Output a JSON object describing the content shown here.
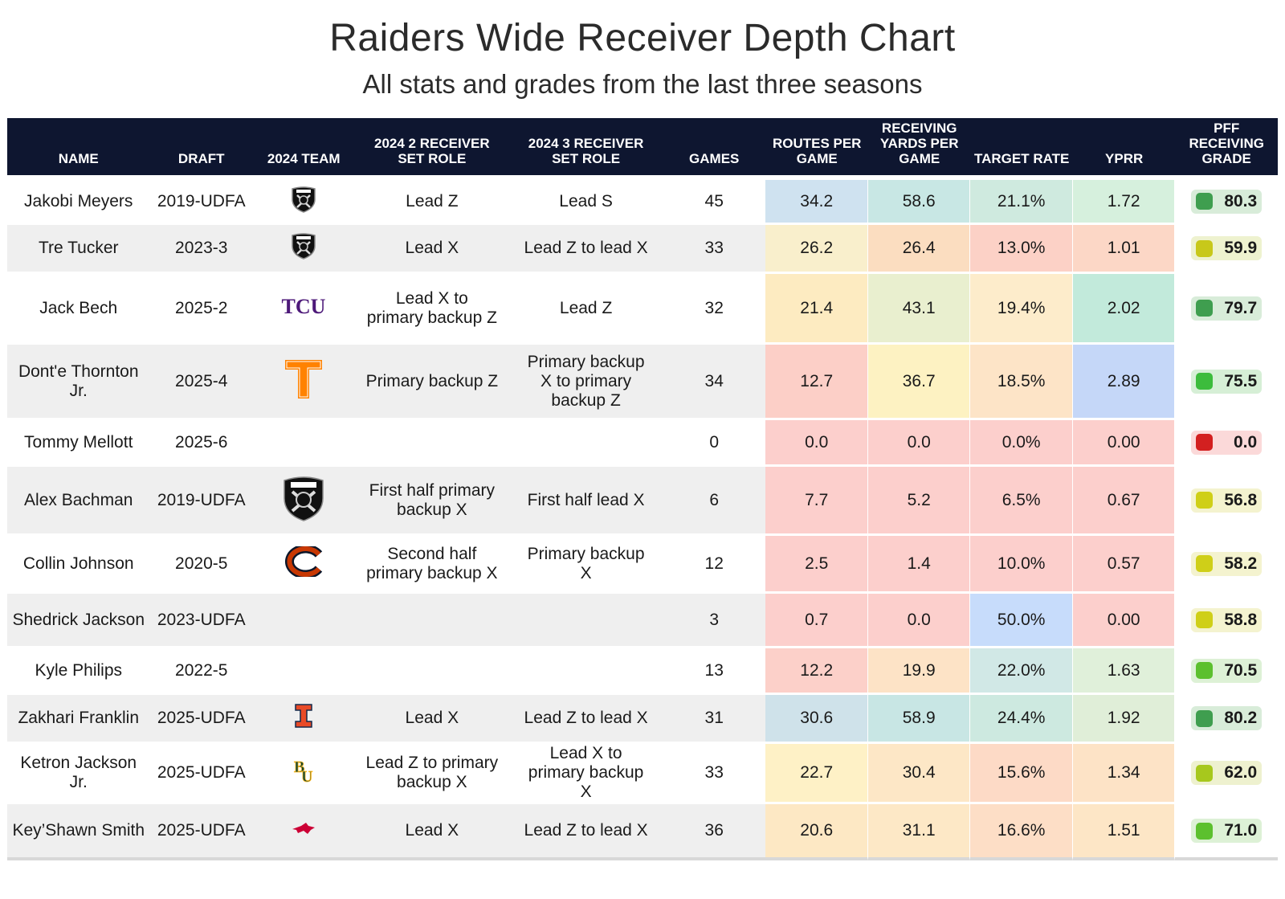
{
  "title": "Raiders Wide Receiver Depth Chart",
  "subtitle": "All stats and grades from the last three seasons",
  "chart_data": {
    "type": "table",
    "columns": [
      "NAME",
      "DRAFT",
      "2024 TEAM",
      "2024 2 RECEIVER SET ROLE",
      "2024 3 RECEIVER SET ROLE",
      "GAMES",
      "ROUTES PER GAME",
      "RECEIVING YARDS PER GAME",
      "TARGET RATE",
      "YPRR",
      "PFF RECEIVING GRADE"
    ],
    "rows": [
      {
        "name": "Jakobi Meyers",
        "draft": "2019-UDFA",
        "team": "raiders-logo",
        "role2": "Lead Z",
        "role3": "Lead S",
        "games": "45",
        "routes": "34.2",
        "yards": "58.6",
        "target": "21.1%",
        "yprr": "1.72",
        "grade": "80.3"
      },
      {
        "name": "Tre Tucker",
        "draft": "2023-3",
        "team": "raiders-logo",
        "role2": "Lead X",
        "role3": "Lead Z to lead X",
        "games": "33",
        "routes": "26.2",
        "yards": "26.4",
        "target": "13.0%",
        "yprr": "1.01",
        "grade": "59.9"
      },
      {
        "name": "Jack Bech",
        "draft": "2025-2",
        "team": "tcu-logo",
        "role2": "Lead X to primary backup Z",
        "role3": "Lead Z",
        "games": "32",
        "routes": "21.4",
        "yards": "43.1",
        "target": "19.4%",
        "yprr": "2.02",
        "grade": "79.7"
      },
      {
        "name": "Dont'e Thornton Jr.",
        "draft": "2025-4",
        "team": "tennessee-logo",
        "role2": "Primary backup Z",
        "role3": "Primary backup X to primary backup Z",
        "games": "34",
        "routes": "12.7",
        "yards": "36.7",
        "target": "18.5%",
        "yprr": "2.89",
        "grade": "75.5"
      },
      {
        "name": "Tommy Mellott",
        "draft": "2025-6",
        "team": "",
        "role2": "",
        "role3": "",
        "games": "0",
        "routes": "0.0",
        "yards": "0.0",
        "target": "0.0%",
        "yprr": "0.00",
        "grade": "0.0"
      },
      {
        "name": "Alex Bachman",
        "draft": "2019-UDFA",
        "team": "raiders-logo",
        "role2": "First half primary backup X",
        "role3": "First half lead X",
        "games": "6",
        "routes": "7.7",
        "yards": "5.2",
        "target": "6.5%",
        "yprr": "0.67",
        "grade": "56.8"
      },
      {
        "name": "Collin Johnson",
        "draft": "2020-5",
        "team": "bears-logo",
        "role2": "Second half primary backup X",
        "role3": "Primary backup X",
        "games": "12",
        "routes": "2.5",
        "yards": "1.4",
        "target": "10.0%",
        "yprr": "0.57",
        "grade": "58.2"
      },
      {
        "name": "Shedrick Jackson",
        "draft": "2023-UDFA",
        "team": "",
        "role2": "",
        "role3": "",
        "games": "3",
        "routes": "0.7",
        "yards": "0.0",
        "target": "50.0%",
        "yprr": "0.00",
        "grade": "58.8"
      },
      {
        "name": "Kyle Philips",
        "draft": "2022-5",
        "team": "",
        "role2": "",
        "role3": "",
        "games": "13",
        "routes": "12.2",
        "yards": "19.9",
        "target": "22.0%",
        "yprr": "1.63",
        "grade": "70.5"
      },
      {
        "name": "Zakhari Franklin",
        "draft": "2025-UDFA",
        "team": "illinois-logo",
        "role2": "Lead X",
        "role3": "Lead Z to lead X",
        "games": "31",
        "routes": "30.6",
        "yards": "58.9",
        "target": "24.4%",
        "yprr": "1.92",
        "grade": "80.2"
      },
      {
        "name": "Ketron Jackson Jr.",
        "draft": "2025-UDFA",
        "team": "baylor-logo",
        "role2": "Lead Z to primary backup X",
        "role3": "Lead X to primary backup X",
        "games": "33",
        "routes": "22.7",
        "yards": "30.4",
        "target": "15.6%",
        "yprr": "1.34",
        "grade": "62.0"
      },
      {
        "name": "Key’Shawn Smith",
        "draft": "2025-UDFA",
        "team": "smu-logo",
        "role2": "Lead X",
        "role3": "Lead Z to lead X",
        "games": "36",
        "routes": "20.6",
        "yards": "31.1",
        "target": "16.6%",
        "yprr": "1.51",
        "grade": "71.0"
      }
    ],
    "cell_colors": [
      [
        "#cfe2f0",
        "#c8e7e4",
        "#cfeadf",
        "#d6f0dd"
      ],
      [
        "#f9efcc",
        "#fbddc0",
        "#fcd1c6",
        "#fcd7c6"
      ],
      [
        "#fdebc1",
        "#e9efcf",
        "#fdeccb",
        "#c2eadb"
      ],
      [
        "#fccfc7",
        "#fdf2c2",
        "#fde4c7",
        "#c5d7f8"
      ],
      [
        "#fccfcc",
        "#fccfcc",
        "#fccfcc",
        "#fccfcc"
      ],
      [
        "#fccfcc",
        "#fccfcc",
        "#fccfcc",
        "#fccfcc"
      ],
      [
        "#fccfcc",
        "#fccfcc",
        "#fccfcc",
        "#fccfcc"
      ],
      [
        "#fccfcc",
        "#fccfcc",
        "#c7dcfb",
        "#fccfcc"
      ],
      [
        "#fcd0c9",
        "#fde3c6",
        "#d1e8e6",
        "#e0f0da"
      ],
      [
        "#cfe2ea",
        "#c8e6e4",
        "#cde9e0",
        "#e0eed8"
      ],
      [
        "#fef1c6",
        "#fde7c6",
        "#fddac6",
        "#fde3c6"
      ],
      [
        "#fde8c4",
        "#fde8c6",
        "#fddec6",
        "#fde6c6"
      ]
    ],
    "grade_colors": [
      {
        "bg": "#d8ecd9",
        "dot": "#3f9e4f"
      },
      {
        "bg": "#eef2cf",
        "dot": "#c8c81a"
      },
      {
        "bg": "#d8ecd9",
        "dot": "#3f9e4f"
      },
      {
        "bg": "#d6efd6",
        "dot": "#3cbc3c"
      },
      {
        "bg": "#fbd9d9",
        "dot": "#d32020"
      },
      {
        "bg": "#f4f3cf",
        "dot": "#cfcf18"
      },
      {
        "bg": "#f4f3cf",
        "dot": "#cfcf18"
      },
      {
        "bg": "#f4f3cf",
        "dot": "#cfcf18"
      },
      {
        "bg": "#ddf1d6",
        "dot": "#5cc02e"
      },
      {
        "bg": "#d8ecd9",
        "dot": "#3f9e4f"
      },
      {
        "bg": "#eef1cf",
        "dot": "#a7c81d"
      },
      {
        "bg": "#ddf1d6",
        "dot": "#5cc02e"
      }
    ],
    "header_color": "#0e1630"
  }
}
